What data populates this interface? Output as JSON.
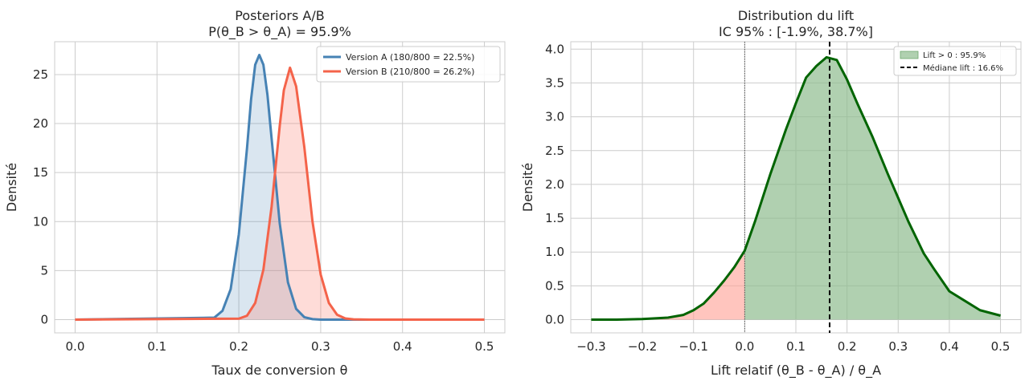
{
  "chart_data": [
    {
      "type": "area",
      "title": "Posteriors A/B",
      "subtitle": "P(θ_B > θ_A) = 95.9%",
      "xlabel": "Taux de conversion θ",
      "ylabel": "Densité",
      "xlim": [
        -0.025,
        0.525
      ],
      "ylim": [
        -1.35,
        28.35
      ],
      "xticks": [
        0.0,
        0.1,
        0.2,
        0.3,
        0.4,
        0.5
      ],
      "xtick_labels": [
        "0.0",
        "0.1",
        "0.2",
        "0.3",
        "0.4",
        "0.5"
      ],
      "yticks": [
        0,
        5,
        10,
        15,
        20,
        25
      ],
      "ytick_labels": [
        "0",
        "5",
        "10",
        "15",
        "20",
        "25"
      ],
      "grid": true,
      "legend_position": "top-right",
      "series": [
        {
          "name": "Version A (180/800 = 22.5%)",
          "color": "#4682b4",
          "fill": "#4682b4",
          "x": [
            0.0,
            0.17,
            0.18,
            0.19,
            0.2,
            0.21,
            0.215,
            0.22,
            0.225,
            0.23,
            0.235,
            0.24,
            0.25,
            0.26,
            0.27,
            0.28,
            0.29,
            0.3,
            0.32,
            0.5
          ],
          "values": [
            0,
            0.2,
            0.9,
            3.1,
            8.7,
            17.5,
            22.5,
            26.0,
            27.0,
            26.0,
            22.9,
            18.5,
            9.8,
            3.8,
            1.1,
            0.25,
            0.05,
            0.0,
            0.0,
            0
          ]
        },
        {
          "name": "Version B (210/800 = 26.2%)",
          "color": "#f4634a",
          "fill": "#fa8072",
          "x": [
            0.0,
            0.2,
            0.21,
            0.22,
            0.23,
            0.24,
            0.25,
            0.255,
            0.2625,
            0.27,
            0.28,
            0.29,
            0.3,
            0.31,
            0.32,
            0.33,
            0.34,
            0.36,
            0.5
          ],
          "values": [
            0,
            0.1,
            0.4,
            1.7,
            5.1,
            11.5,
            19.8,
            23.4,
            25.7,
            23.8,
            17.6,
            10.0,
            4.6,
            1.7,
            0.5,
            0.12,
            0.03,
            0.0,
            0
          ]
        }
      ]
    },
    {
      "type": "area",
      "title": "Distribution du lift",
      "subtitle": "IC 95% : [-1.9%, 38.7%]",
      "xlabel": "Lift relatif (θ_B - θ_A) / θ_A",
      "ylabel": "Densité",
      "xlim": [
        -0.34,
        0.54
      ],
      "ylim": [
        -0.195,
        4.11
      ],
      "xticks": [
        -0.3,
        -0.2,
        -0.1,
        0.0,
        0.1,
        0.2,
        0.3,
        0.4,
        0.5
      ],
      "xtick_labels": [
        "−0.3",
        "−0.2",
        "−0.1",
        "0.0",
        "0.1",
        "0.2",
        "0.3",
        "0.4",
        "0.5"
      ],
      "yticks": [
        0.0,
        0.5,
        1.0,
        1.5,
        2.0,
        2.5,
        3.0,
        3.5,
        4.0
      ],
      "ytick_labels": [
        "0.0",
        "0.5",
        "1.0",
        "1.5",
        "2.0",
        "2.5",
        "3.0",
        "3.5",
        "4.0"
      ],
      "grid": true,
      "legend_position": "top-right",
      "vline_zero": 0.0,
      "median": 0.166,
      "series": [
        {
          "name": "Lift > 0 : 95.9%",
          "color": "#006400",
          "fill_positive": "#8fbc8f",
          "fill_negative": "#ff9f92",
          "x": [
            -0.3,
            -0.25,
            -0.2,
            -0.15,
            -0.12,
            -0.1,
            -0.08,
            -0.06,
            -0.04,
            -0.02,
            0.0,
            0.02,
            0.05,
            0.08,
            0.1,
            0.12,
            0.14,
            0.16,
            0.18,
            0.2,
            0.22,
            0.25,
            0.28,
            0.3,
            0.32,
            0.35,
            0.37,
            0.4,
            0.43,
            0.46,
            0.5
          ],
          "values": [
            0.0,
            0.0,
            0.01,
            0.03,
            0.07,
            0.14,
            0.24,
            0.4,
            0.58,
            0.78,
            1.02,
            1.45,
            2.15,
            2.8,
            3.2,
            3.58,
            3.75,
            3.88,
            3.84,
            3.55,
            3.2,
            2.7,
            2.15,
            1.8,
            1.45,
            0.98,
            0.75,
            0.42,
            0.28,
            0.14,
            0.06
          ]
        }
      ],
      "legend": [
        {
          "label": "Lift > 0 : 95.9%",
          "kind": "patch"
        },
        {
          "label": "Médiane lift : 16.6%",
          "kind": "dashed"
        }
      ]
    }
  ]
}
